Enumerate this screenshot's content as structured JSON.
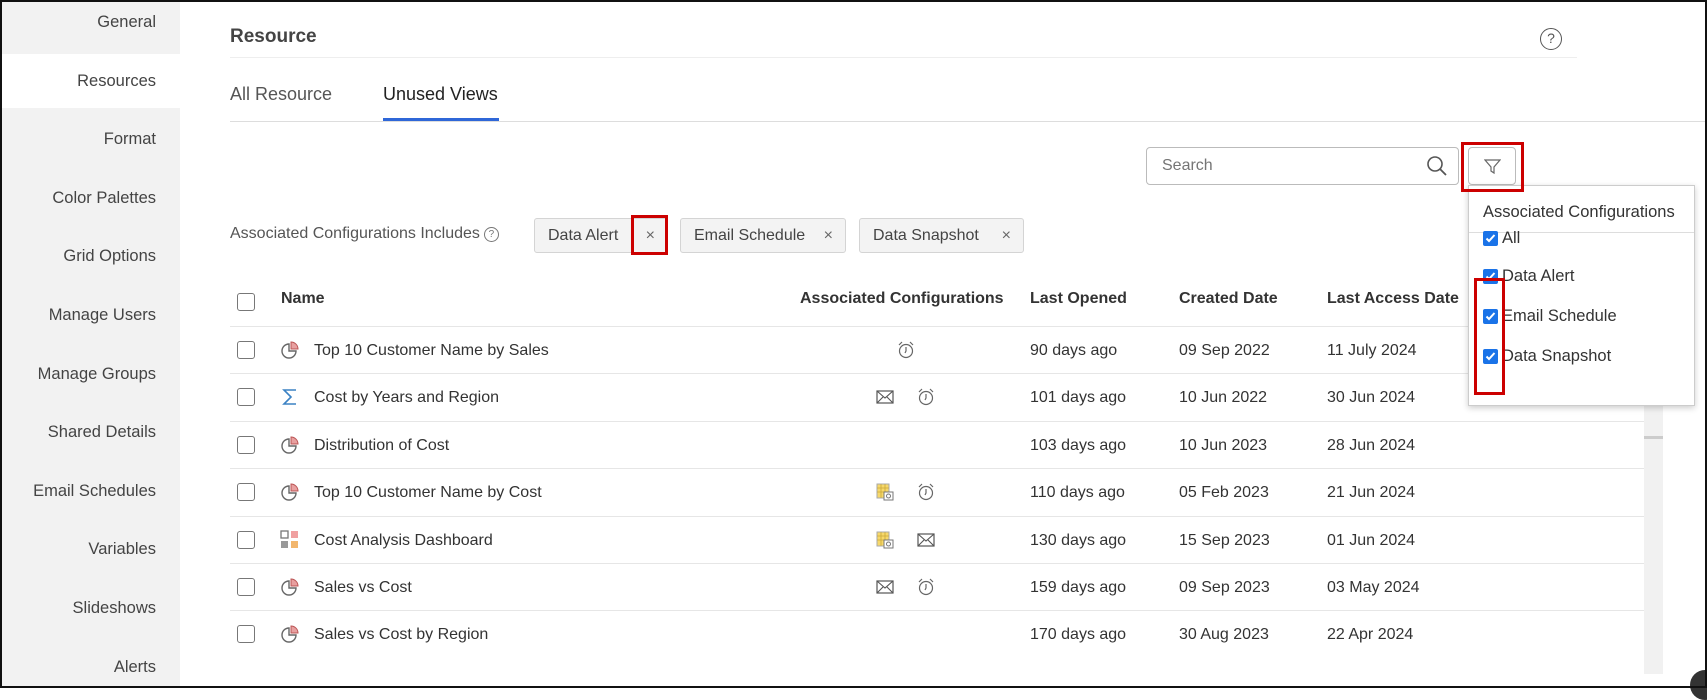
{
  "sidebar": {
    "items": [
      {
        "label": "General",
        "active": false
      },
      {
        "label": "Resources",
        "active": true
      },
      {
        "label": "Format",
        "active": false
      },
      {
        "label": "Color Palettes",
        "active": false
      },
      {
        "label": "Grid Options",
        "active": false
      },
      {
        "label": "Manage Users",
        "active": false
      },
      {
        "label": "Manage Groups",
        "active": false
      },
      {
        "label": "Shared Details",
        "active": false
      },
      {
        "label": "Email Schedules",
        "active": false
      },
      {
        "label": "Variables",
        "active": false
      },
      {
        "label": "Slideshows",
        "active": false
      },
      {
        "label": "Alerts",
        "active": false
      }
    ]
  },
  "header": {
    "title": "Resource",
    "help_icon": "question-circle-icon"
  },
  "tabs": [
    {
      "label": "All Resource",
      "active": false
    },
    {
      "label": "Unused Views",
      "active": true
    }
  ],
  "search": {
    "placeholder": "Search",
    "value": ""
  },
  "filter_dropdown": {
    "title": "Associated Configurations",
    "options": [
      {
        "label": "All",
        "checked": true
      },
      {
        "label": "Data Alert",
        "checked": true
      },
      {
        "label": "Email Schedule",
        "checked": true
      },
      {
        "label": "Data Snapshot",
        "checked": true
      }
    ]
  },
  "active_filters": {
    "label": "Associated Configurations Includes",
    "chips": [
      "Data Alert",
      "Email Schedule",
      "Data Snapshot"
    ],
    "remove_symbol": "×"
  },
  "table": {
    "columns": [
      "Name",
      "Associated Configurations",
      "Last Opened",
      "Created Date",
      "Last Access Date"
    ],
    "rows": [
      {
        "icon": "pie",
        "name": "Top 10 Customer Name by Sales",
        "configs": [
          "alarm"
        ],
        "last_opened": "90 days ago",
        "created": "09 Sep 2022",
        "last_access": "11 July 2024"
      },
      {
        "icon": "sigma",
        "name": "Cost by Years and Region",
        "configs": [
          "mail",
          "alarm"
        ],
        "last_opened": "101 days ago",
        "created": "10 Jun 2022",
        "last_access": "30 Jun 2024"
      },
      {
        "icon": "pie",
        "name": "Distribution of Cost",
        "configs": [],
        "last_opened": "103 days ago",
        "created": "10 Jun 2023",
        "last_access": "28 Jun 2024"
      },
      {
        "icon": "pie",
        "name": "Top 10 Customer Name by Cost",
        "configs": [
          "snapshot",
          "alarm"
        ],
        "last_opened": "110 days ago",
        "created": "05 Feb 2023",
        "last_access": "21 Jun 2024"
      },
      {
        "icon": "dashboard",
        "name": "Cost Analysis Dashboard",
        "configs": [
          "snapshot",
          "mail"
        ],
        "last_opened": "130 days ago",
        "created": "15 Sep 2023",
        "last_access": "01 Jun 2024"
      },
      {
        "icon": "pie",
        "name": "Sales vs Cost",
        "configs": [
          "mail",
          "alarm"
        ],
        "last_opened": "159 days ago",
        "created": "09 Sep 2023",
        "last_access": "03 May 2024"
      },
      {
        "icon": "pie",
        "name": "Sales vs Cost by Region",
        "configs": [],
        "last_opened": "170 days ago",
        "created": "30 Aug 2023",
        "last_access": "22 Apr 2024"
      }
    ]
  },
  "colors": {
    "accent": "#2f67d8",
    "checkbox": "#1a73e8",
    "highlight": "#cc0000"
  }
}
